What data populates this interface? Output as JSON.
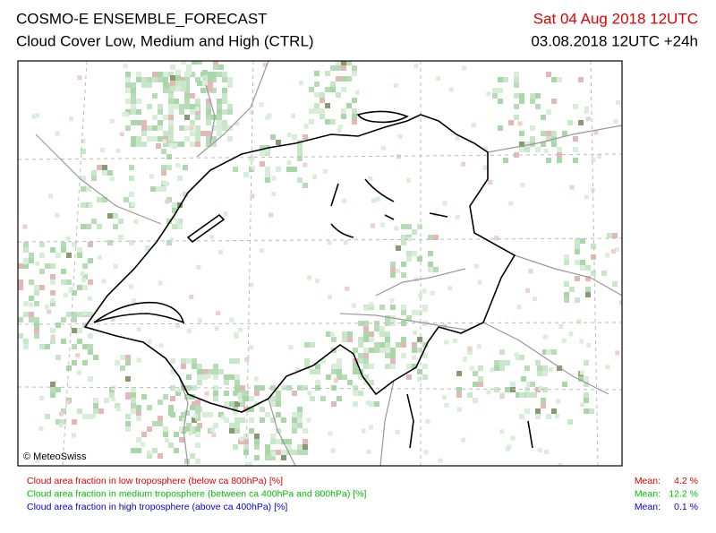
{
  "header": {
    "title": "COSMO-E ENSEMBLE_FORECAST",
    "subtitle": "Cloud Cover Low, Medium and High (CTRL)",
    "valid_time": "Sat 04 Aug 2018 12UTC",
    "run_time": "03.08.2018 12UTC +24h"
  },
  "map": {
    "copyright": "© MeteoSwiss"
  },
  "legend": [
    {
      "label": "Cloud area fraction in low troposphere (below ca 800hPa) [%]",
      "mean_label": "Mean:",
      "mean_value": "4.2 %",
      "color": "#e00000"
    },
    {
      "label": "Cloud area fraction in medium troposphere (between ca 400hPa and 800hPa) [%]",
      "mean_label": "Mean:",
      "mean_value": "12.2 %",
      "color": "#00c000"
    },
    {
      "label": "Cloud area fraction in high troposphere (above ca 400hPa) [%]",
      "mean_label": "Mean:",
      "mean_value": "0.1 %",
      "color": "#0000e0"
    }
  ]
}
